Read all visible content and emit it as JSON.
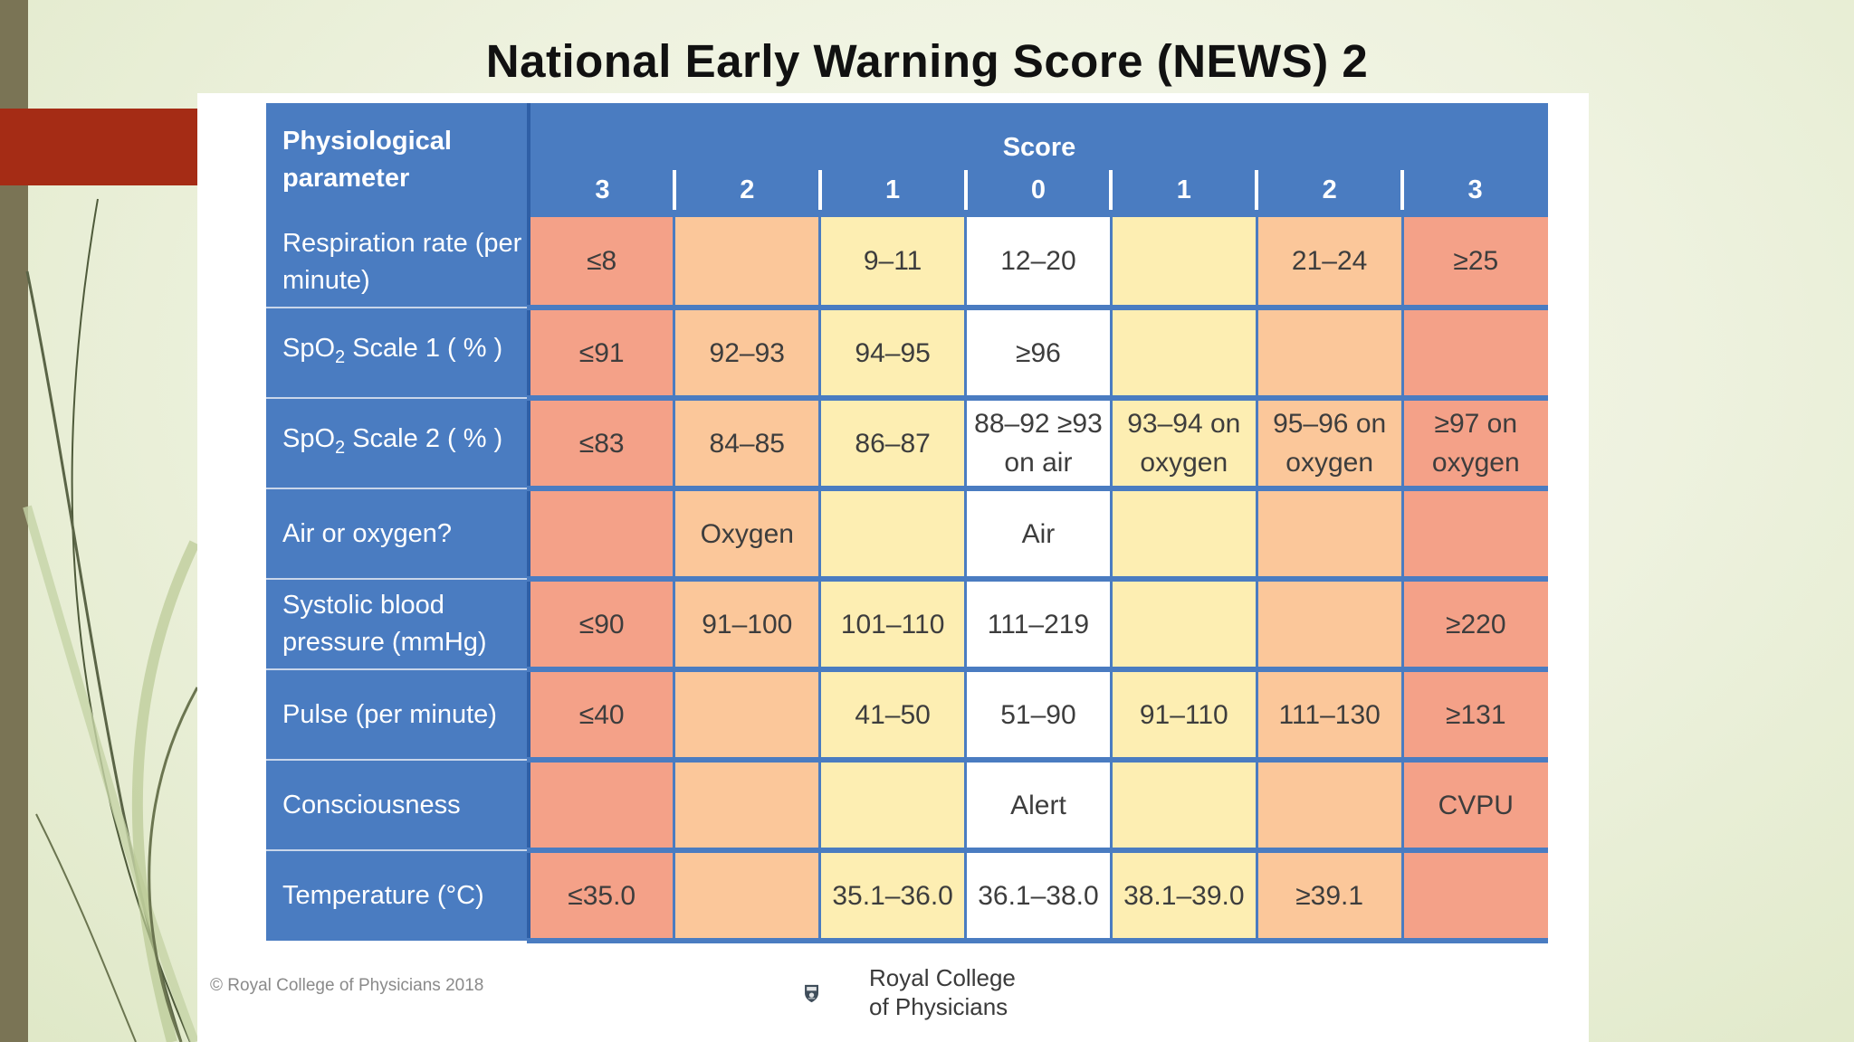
{
  "title": "National Early Warning Score (NEWS) 2",
  "colors": {
    "header_blue": "#4a7cc1",
    "score_3": "#f4a188",
    "score_2": "#fbc79a",
    "score_1": "#fdeeb2",
    "score_0": "#ffffff",
    "accent_red": "#a52c15"
  },
  "table": {
    "param_header": "Physiological parameter",
    "score_header": "Score",
    "score_columns": [
      "3",
      "2",
      "1",
      "0",
      "1",
      "2",
      "3"
    ],
    "rows": [
      {
        "parameter": "Respiration rate (per minute)",
        "cells": [
          "≤8",
          "",
          "9–11",
          "12–20",
          "",
          "21–24",
          "≥25"
        ]
      },
      {
        "parameter_main": "SpO",
        "parameter_sub": "2",
        "parameter_rest": " Scale 1 ( % )",
        "cells": [
          "≤91",
          "92–93",
          "94–95",
          "≥96",
          "",
          "",
          ""
        ]
      },
      {
        "parameter_main": "SpO",
        "parameter_sub": "2",
        "parameter_rest": " Scale 2 ( % )",
        "cells": [
          "≤83",
          "84–85",
          "86–87",
          "88–92 ≥93 on air",
          "93–94 on oxygen",
          "95–96 on oxygen",
          "≥97 on oxygen"
        ]
      },
      {
        "parameter": "Air or oxygen?",
        "cells": [
          "",
          "Oxygen",
          "",
          "Air",
          "",
          "",
          ""
        ]
      },
      {
        "parameter": "Systolic blood pressure (mmHg)",
        "cells": [
          "≤90",
          "91–100",
          "101–110",
          "111–219",
          "",
          "",
          "≥220"
        ]
      },
      {
        "parameter": "Pulse (per minute)",
        "cells": [
          "≤40",
          "",
          "41–50",
          "51–90",
          "91–110",
          "111–130",
          "≥131"
        ]
      },
      {
        "parameter": "Consciousness",
        "cells": [
          "",
          "",
          "",
          "Alert",
          "",
          "",
          "CVPU"
        ]
      },
      {
        "parameter": "Temperature (°C)",
        "cells": [
          "≤35.0",
          "",
          "35.1–36.0",
          "36.1–38.0",
          "38.1–39.0",
          "≥39.1",
          ""
        ]
      }
    ]
  },
  "footer": {
    "copyright": "© Royal College of Physicians 2018",
    "logo_line1": "Royal College",
    "logo_line2": "of Physicians",
    "logo_icon": "crest-icon"
  }
}
